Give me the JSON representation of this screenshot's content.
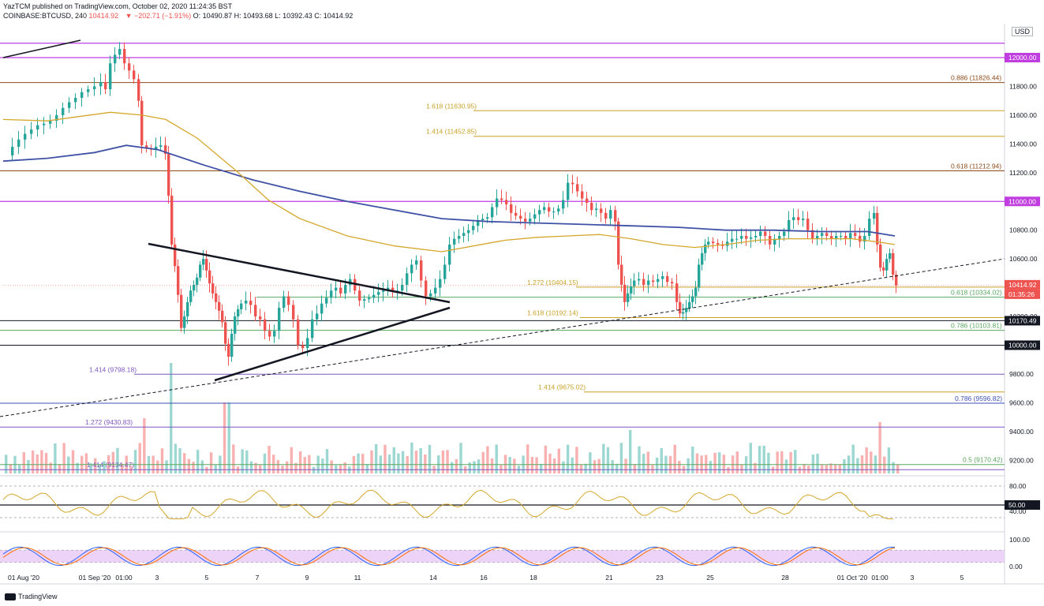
{
  "header": {
    "publisher_line": "YazTCM published on TradingView.com, October 02, 2020 11:24:35 BST",
    "symbol_line": "COINBASE:BTCUSD, 240",
    "last": "10414.92",
    "change": "▼ −202.71 (−1.91%)",
    "ohlc": "O: 10490.87  H: 10493.68  L: 10392.43  C: 10414.92"
  },
  "currency": "USD",
  "logo": "TradingView",
  "colors": {
    "up": "#26a69a",
    "down": "#ef5350",
    "ma_blue": "#3f51a5",
    "ma_orange": "#d4a72c",
    "magenta": "#c03ee0",
    "fib_brown": "#8d4b1c",
    "fib_gold": "#c9a227",
    "fib_green": "#5aa760",
    "fib_purple": "#7e57c2",
    "fib_blue": "#3f51b5",
    "rsi_line": "#d4a72c",
    "stoch_bg": "#e8c8f5"
  },
  "chart_data": {
    "type": "candlestick",
    "timeframe": "240",
    "yticks": [
      "12000.00",
      "11800.00",
      "11600.00",
      "11400.00",
      "11200.00",
      "11000.00",
      "10800.00",
      "10600.00",
      "10400.00",
      "10200.00",
      "10000.00",
      "9800.00",
      "9600.00",
      "9400.00",
      "9200.00"
    ],
    "ylim": [
      9100,
      12250
    ],
    "xticks": [
      "01 Aug '20",
      "01 Sep '20",
      "01:00",
      "3",
      "5",
      "7",
      "9",
      "11",
      "14",
      "16",
      "18",
      "21",
      "23",
      "25",
      "28",
      "01 Oct '20",
      "01:00",
      "3",
      "5"
    ],
    "levels": [
      {
        "label": "",
        "price": 12000,
        "color": "magenta",
        "tag": "12000.00"
      },
      {
        "label": "",
        "price": 12100,
        "color": "magenta",
        "tag": ""
      },
      {
        "label": "",
        "price": 11000,
        "color": "magenta",
        "tag": "11000.00"
      },
      {
        "label": "0.886 (11826.44)",
        "price": 11826.44,
        "color": "fib_brown",
        "tag": ""
      },
      {
        "label": "1.618 (11630.95)",
        "price": 11630.95,
        "color": "fib_gold",
        "tag": ""
      },
      {
        "label": "1.414 (11452.85)",
        "price": 11452.85,
        "color": "fib_gold",
        "tag": ""
      },
      {
        "label": "0.618 (11212.94)",
        "price": 11212.94,
        "color": "fib_brown",
        "tag": ""
      },
      {
        "label": "1.272 (10404.15)",
        "price": 10404.15,
        "color": "fib_gold",
        "tag": ""
      },
      {
        "label": "0.618 (10334.02)",
        "price": 10334.02,
        "color": "fib_green",
        "tag": ""
      },
      {
        "label": "1.618 (10192.14)",
        "price": 10192.14,
        "color": "fib_gold",
        "tag": ""
      },
      {
        "label": "",
        "price": 10170.49,
        "color": "black",
        "tag": "10170.49"
      },
      {
        "label": "0.786 (10103.81)",
        "price": 10103.81,
        "color": "fib_green",
        "tag": ""
      },
      {
        "label": "",
        "price": 10000,
        "color": "black",
        "tag": "10000.00"
      },
      {
        "label": "1.414 (9798.18)",
        "price": 9798.18,
        "color": "fib_purple",
        "tag": ""
      },
      {
        "label": "1.414 (9675.02)",
        "price": 9675.02,
        "color": "fib_gold",
        "tag": ""
      },
      {
        "label": "0.786 (9596.82)",
        "price": 9596.82,
        "color": "fib_blue",
        "tag": ""
      },
      {
        "label": "1.272 (9430.83)",
        "price": 9430.83,
        "color": "fib_purple",
        "tag": ""
      },
      {
        "label": "1.414 (9134.47)",
        "price": 9134.47,
        "color": "fib_purple",
        "tag": ""
      },
      {
        "label": "0.5 (9170.42)",
        "price": 9170.42,
        "color": "fib_green",
        "tag": ""
      }
    ],
    "current_price_tag": "10414.92",
    "countdown_tag": "01:35:26",
    "rsi": {
      "yticks": [
        "80.00",
        "40.00"
      ],
      "level_tag": "50.00"
    },
    "stoch": {
      "yticks": [
        "100.00",
        "0.00"
      ]
    }
  }
}
